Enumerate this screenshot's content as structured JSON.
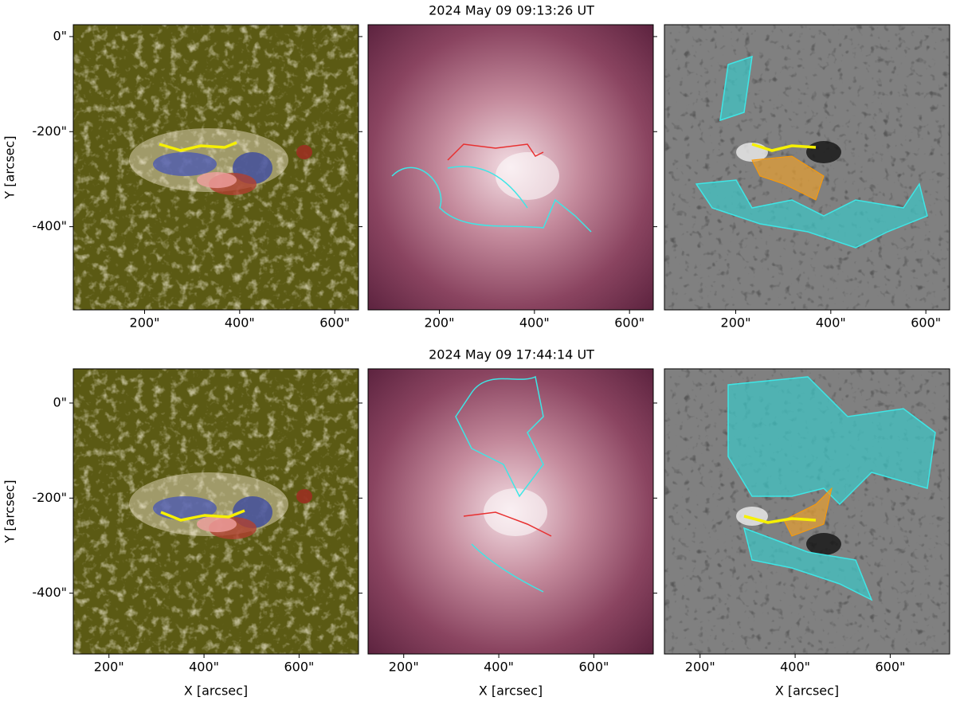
{
  "figure": {
    "rows": [
      {
        "title": "2024 May 09 09:13:26 UT",
        "ylabel": "Y [arcsec]",
        "xlim": [
          50,
          650
        ],
        "ylim": [
          -575,
          25
        ],
        "xticks": [
          {
            "value": 200,
            "label": "200\""
          },
          {
            "value": 400,
            "label": "400\""
          },
          {
            "value": 600,
            "label": "600\""
          }
        ],
        "yticks": [
          {
            "value": 0,
            "label": "0\""
          },
          {
            "value": -200,
            "label": "-200\""
          },
          {
            "value": -400,
            "label": "-400\""
          }
        ]
      },
      {
        "title": "2024 May 09 17:44:14 UT",
        "ylabel": "Y [arcsec]",
        "xlabel": "X [arcsec]",
        "xlim": [
          125,
          725
        ],
        "ylim": [
          -528,
          72
        ],
        "xticks": [
          {
            "value": 200,
            "label": "200\""
          },
          {
            "value": 400,
            "label": "400\""
          },
          {
            "value": 600,
            "label": "600\""
          }
        ],
        "yticks": [
          {
            "value": 0,
            "label": "0\""
          },
          {
            "value": -200,
            "label": "-200\""
          },
          {
            "value": -400,
            "label": "-400\""
          }
        ]
      }
    ]
  }
}
